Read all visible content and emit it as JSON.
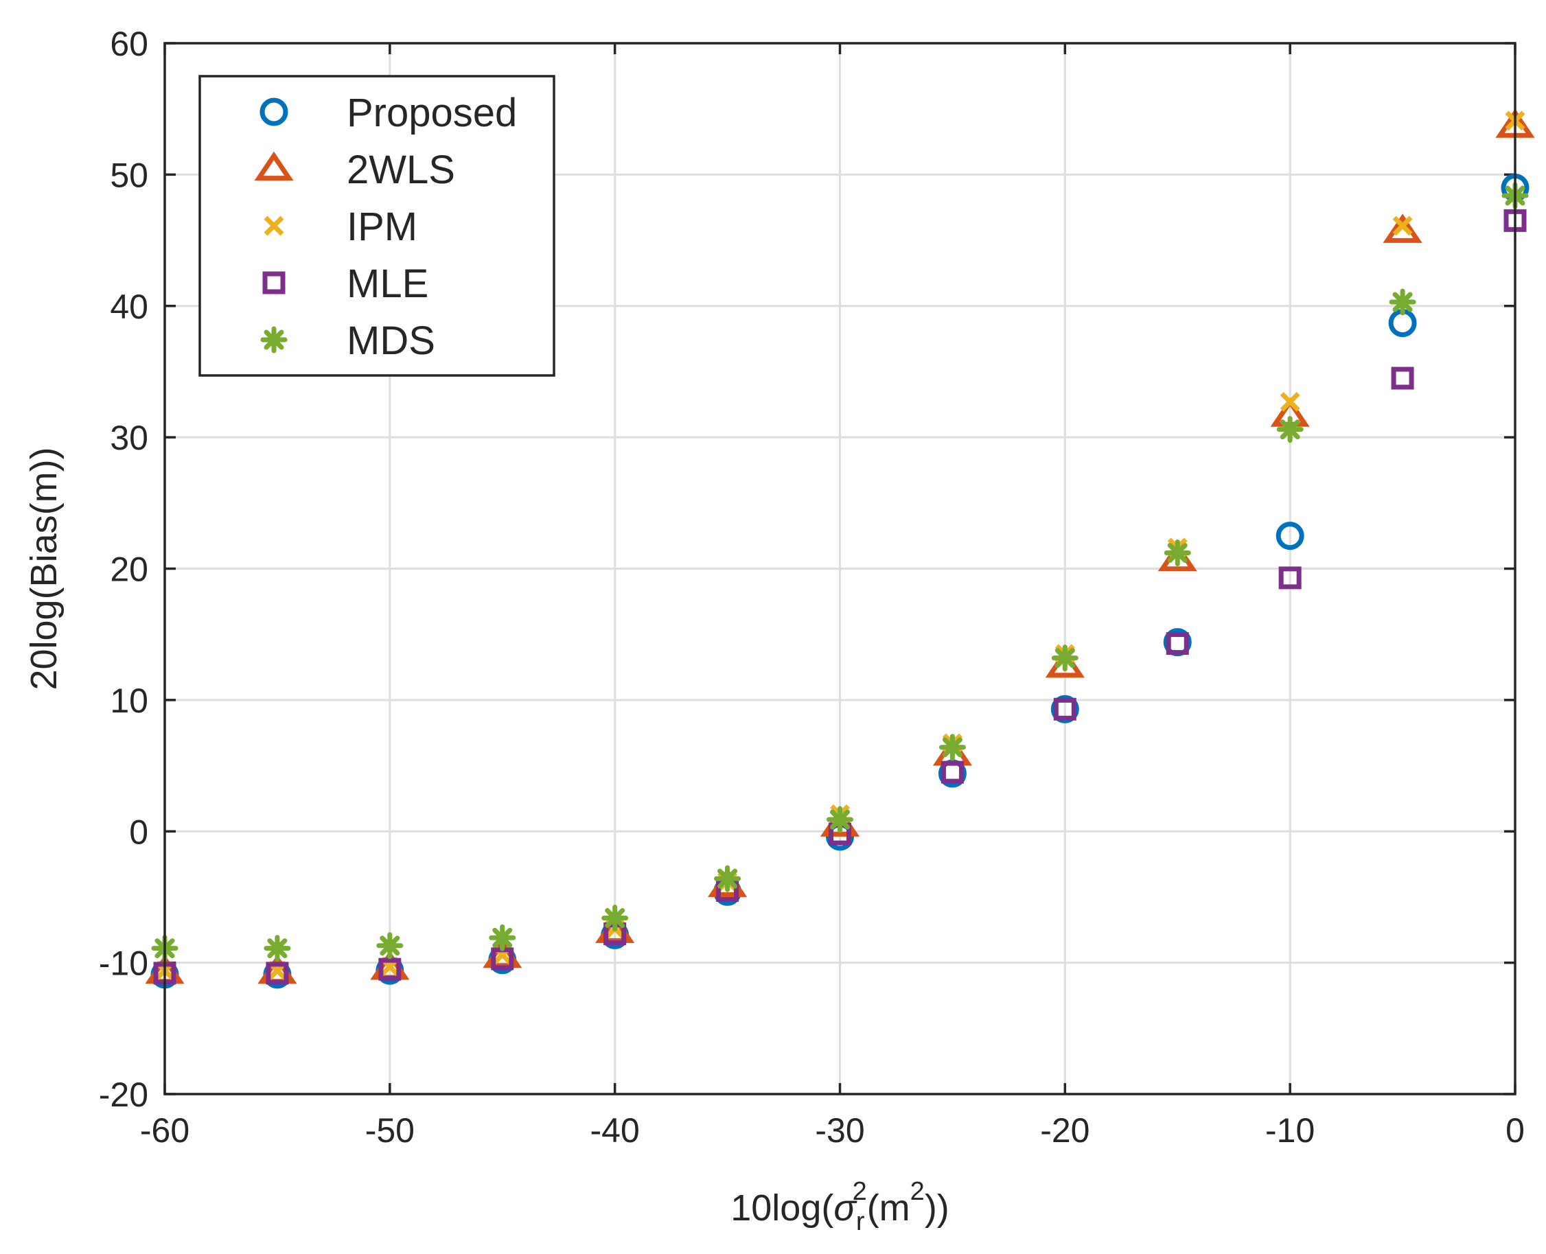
{
  "chart_data": {
    "type": "scatter",
    "title": "",
    "xlabel": "10log(σr2(m2))",
    "ylabel": "20log(Bias(m))",
    "xlim": [
      -60,
      0
    ],
    "ylim": [
      -20,
      60
    ],
    "grid": true,
    "legend_position": "top-left",
    "x_ticks": [
      -60,
      -50,
      -40,
      -30,
      -20,
      -10,
      0
    ],
    "y_ticks": [
      -20,
      -10,
      0,
      10,
      20,
      30,
      40,
      50,
      60
    ],
    "x_tick_labels": [
      "-60",
      "-50",
      "-40",
      "-30",
      "-20",
      "-10",
      "0"
    ],
    "y_tick_labels": [
      "-20",
      "-10",
      "0",
      "10",
      "20",
      "30",
      "40",
      "50",
      "60"
    ],
    "x": [
      -60,
      -55,
      -50,
      -45,
      -40,
      -35,
      -30,
      -25,
      -20,
      -15,
      -10,
      -5,
      0
    ],
    "series": [
      {
        "name": "Proposed",
        "marker": "circle",
        "color": "#0072bd",
        "values": [
          -10.9,
          -10.9,
          -10.6,
          -9.8,
          -7.9,
          -4.6,
          -0.4,
          4.4,
          9.3,
          14.4,
          22.5,
          38.7,
          49.0
        ]
      },
      {
        "name": "2WLS",
        "marker": "triangle",
        "color": "#d95319",
        "values": [
          -10.7,
          -10.7,
          -10.4,
          -9.5,
          -7.6,
          -4.1,
          0.5,
          5.9,
          12.6,
          20.7,
          31.7,
          45.7,
          53.7
        ]
      },
      {
        "name": "IPM",
        "marker": "x",
        "color": "#edb120",
        "values": [
          -10.6,
          -10.6,
          -10.3,
          -9.4,
          -7.4,
          -3.8,
          1.3,
          6.7,
          13.5,
          21.6,
          32.7,
          46.1,
          54.1
        ]
      },
      {
        "name": "MLE",
        "marker": "square",
        "color": "#7e2f8e",
        "values": [
          -10.8,
          -10.8,
          -10.5,
          -9.7,
          -7.8,
          -4.5,
          -0.2,
          4.5,
          9.3,
          14.3,
          19.3,
          34.5,
          46.5
        ]
      },
      {
        "name": "MDS",
        "marker": "star",
        "color": "#77ac30",
        "values": [
          -8.9,
          -8.9,
          -8.7,
          -8.1,
          -6.6,
          -3.6,
          0.9,
          6.4,
          13.2,
          21.2,
          30.6,
          40.3,
          48.4
        ]
      }
    ]
  }
}
